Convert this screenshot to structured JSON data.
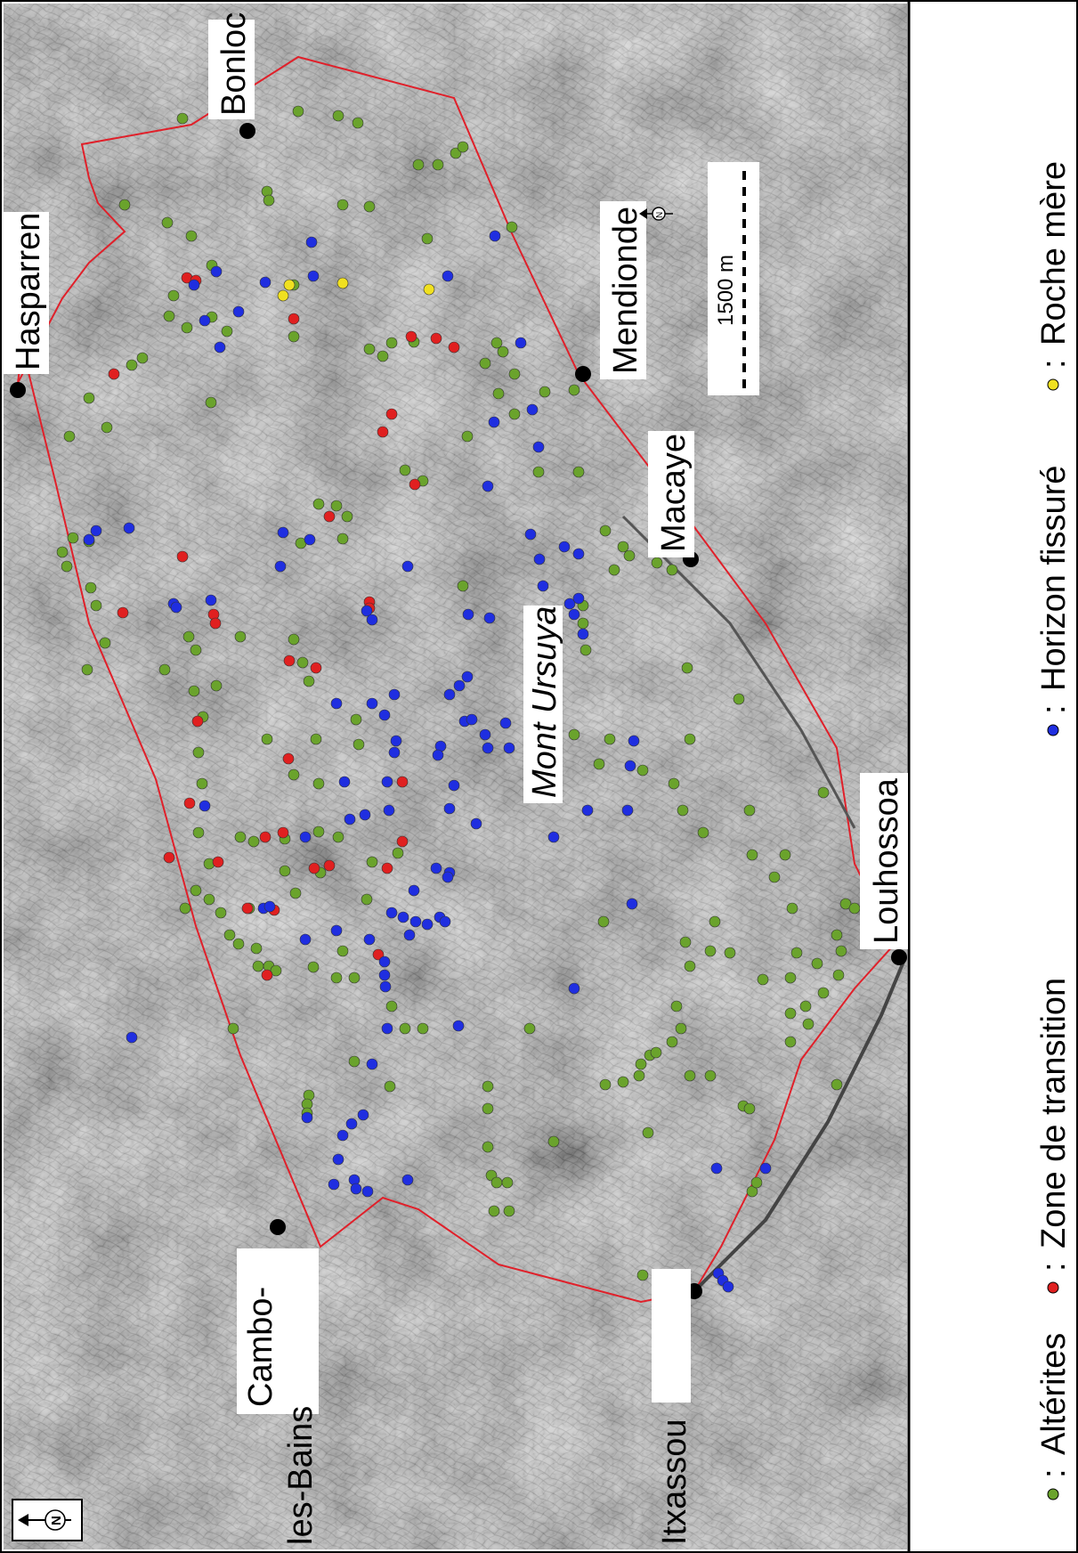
{
  "map": {
    "towns": [
      {
        "id": "hasparren",
        "name": "Hasparren"
      },
      {
        "id": "bonloc",
        "name": "Bonloc"
      },
      {
        "id": "mendionde",
        "name": "Mendionde"
      },
      {
        "id": "macaye",
        "name": "Macaye"
      },
      {
        "id": "louhossoa",
        "name": "Louhossoa"
      },
      {
        "id": "itxassou",
        "name": "Itxassou"
      },
      {
        "id": "cambo",
        "name": "Cambo-\nles-Bains",
        "line1": "Cambo-",
        "line2": "les-Bains"
      }
    ],
    "summit_label": "Mont Ursuya",
    "scale_label": "1500 m",
    "north_letter": "N",
    "boundary_color": "#e0202a",
    "legend": [
      {
        "id": "alterites",
        "label": "Altérites",
        "prefix": ":",
        "color": "#6aa32c"
      },
      {
        "id": "transition",
        "label": "Zone de transition",
        "prefix": ":",
        "color": "#e02020"
      },
      {
        "id": "fissure",
        "label": "Horizon fissuré",
        "prefix": ":",
        "color": "#1f2ee0"
      },
      {
        "id": "roche",
        "label": "Roche mère",
        "prefix": ":",
        "color": "#f0e020"
      }
    ],
    "icons": {
      "north_arrow": "north-arrow-icon",
      "town_marker": "town-dot-icon"
    }
  }
}
